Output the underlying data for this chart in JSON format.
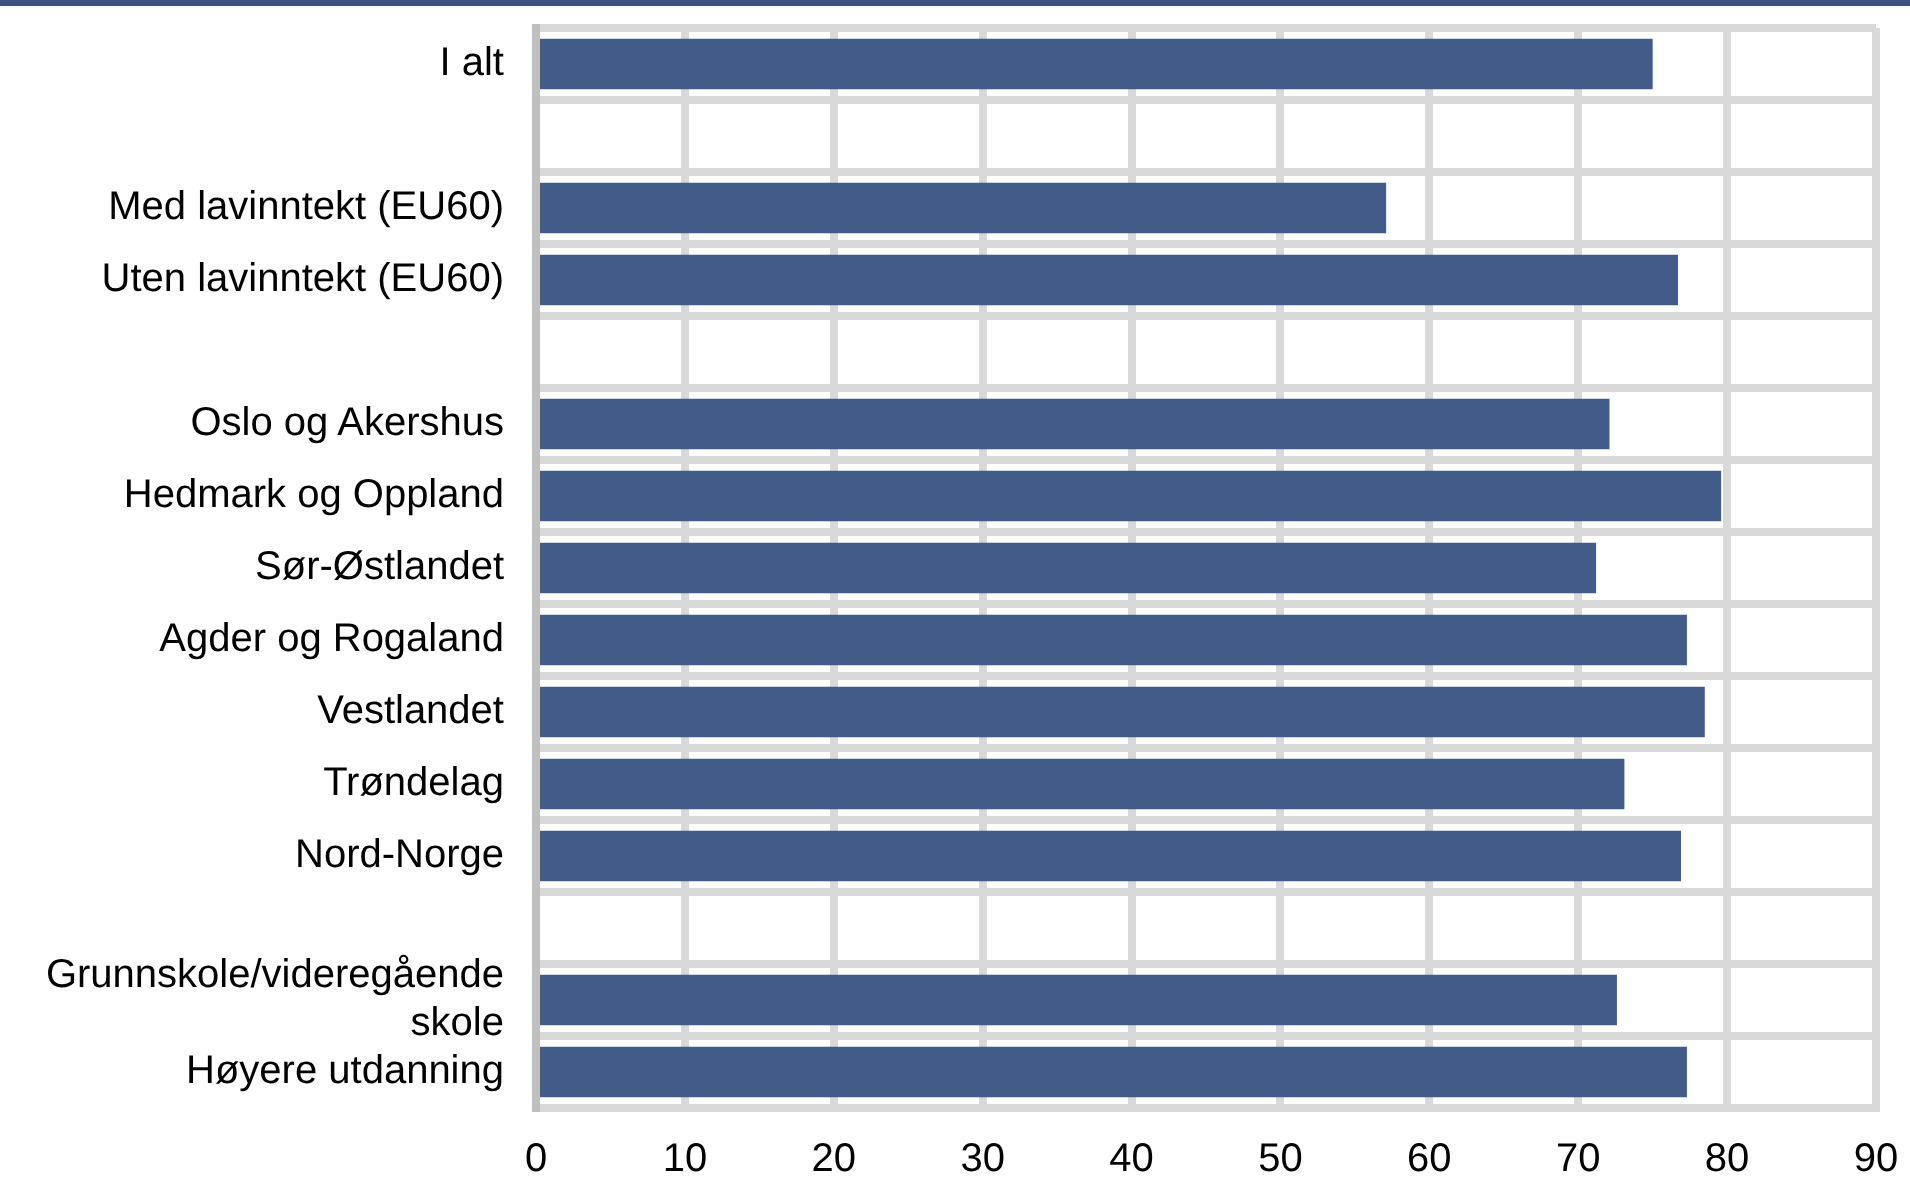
{
  "chart_data": {
    "type": "bar",
    "orientation": "horizontal",
    "categories": [
      "I alt",
      null,
      "Med lavinntekt (EU60)",
      "Uten lavinntekt (EU60)",
      null,
      "Oslo og Akershus",
      "Hedmark og Oppland",
      "Sør-Østlandet",
      "Agder og Rogaland",
      "Vestlandet",
      "Trøndelag",
      "Nord-Norge",
      null,
      "Grunnskole/videregående skole",
      "Høyere utdanning"
    ],
    "values": [
      75.0,
      null,
      57.1,
      76.7,
      null,
      72.1,
      79.6,
      71.2,
      77.3,
      78.5,
      73.1,
      76.9,
      null,
      72.6,
      77.3
    ],
    "color": "#425b89",
    "xlim": [
      0,
      90
    ],
    "xticks": [
      0,
      10,
      20,
      30,
      40,
      50,
      60,
      70,
      80,
      90
    ],
    "grid": true
  }
}
